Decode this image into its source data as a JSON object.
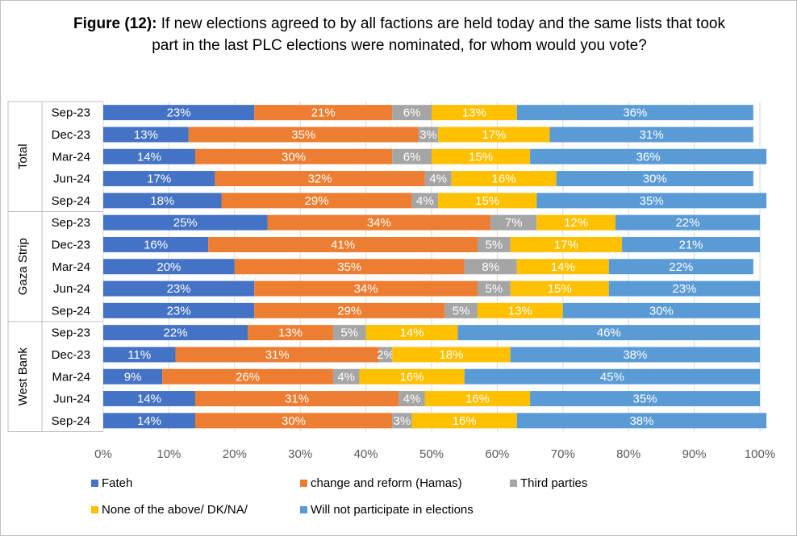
{
  "chart_data": {
    "type": "bar",
    "orientation": "horizontal-stacked-100",
    "title_prefix": "Figure (12):",
    "title": "If new elections agreed to by all factions are held today and the same lists that took part in the last PLC elections were nominated, for whom would you vote?",
    "groups": [
      {
        "name": "Total",
        "rows": [
          {
            "label": "Sep-23",
            "values": [
              23,
              21,
              6,
              13,
              36
            ]
          },
          {
            "label": "Dec-23",
            "values": [
              13,
              35,
              3,
              17,
              31
            ]
          },
          {
            "label": "Mar-24",
            "values": [
              14,
              30,
              6,
              15,
              36
            ]
          },
          {
            "label": "Jun-24",
            "values": [
              17,
              32,
              4,
              16,
              30
            ]
          },
          {
            "label": "Sep-24",
            "values": [
              18,
              29,
              4,
              15,
              35
            ]
          }
        ]
      },
      {
        "name": "Gaza Strip",
        "rows": [
          {
            "label": "Sep-23",
            "values": [
              25,
              34,
              7,
              12,
              22
            ]
          },
          {
            "label": "Dec-23",
            "values": [
              16,
              41,
              5,
              17,
              21
            ]
          },
          {
            "label": "Mar-24",
            "values": [
              20,
              35,
              8,
              14,
              22
            ]
          },
          {
            "label": "Jun-24",
            "values": [
              23,
              34,
              5,
              15,
              23
            ]
          },
          {
            "label": "Sep-24",
            "values": [
              23,
              29,
              5,
              13,
              30
            ]
          }
        ]
      },
      {
        "name": "West Bank",
        "rows": [
          {
            "label": "Sep-23",
            "values": [
              22,
              13,
              5,
              14,
              46
            ]
          },
          {
            "label": "Dec-23",
            "values": [
              11,
              31,
              2,
              18,
              38
            ]
          },
          {
            "label": "Mar-24",
            "values": [
              9,
              26,
              4,
              16,
              45
            ]
          },
          {
            "label": "Jun-24",
            "values": [
              14,
              31,
              4,
              16,
              35
            ]
          },
          {
            "label": "Sep-24",
            "values": [
              14,
              30,
              3,
              16,
              38
            ]
          }
        ]
      }
    ],
    "series": [
      {
        "name": "Fateh",
        "color": "#4472c4"
      },
      {
        "name": "change and reform (Hamas)",
        "color": "#ed7d31"
      },
      {
        "name": "Third parties",
        "color": "#a5a5a5"
      },
      {
        "name": "None of the above/ DK/NA/",
        "color": "#ffc000"
      },
      {
        "name": "Will not participate in elections",
        "color": "#5b9bd5"
      }
    ],
    "xlim": [
      0,
      100
    ],
    "xticks": [
      "0%",
      "10%",
      "20%",
      "30%",
      "40%",
      "50%",
      "60%",
      "70%",
      "80%",
      "90%",
      "100%"
    ],
    "legend_position": "bottom",
    "grid": true
  }
}
